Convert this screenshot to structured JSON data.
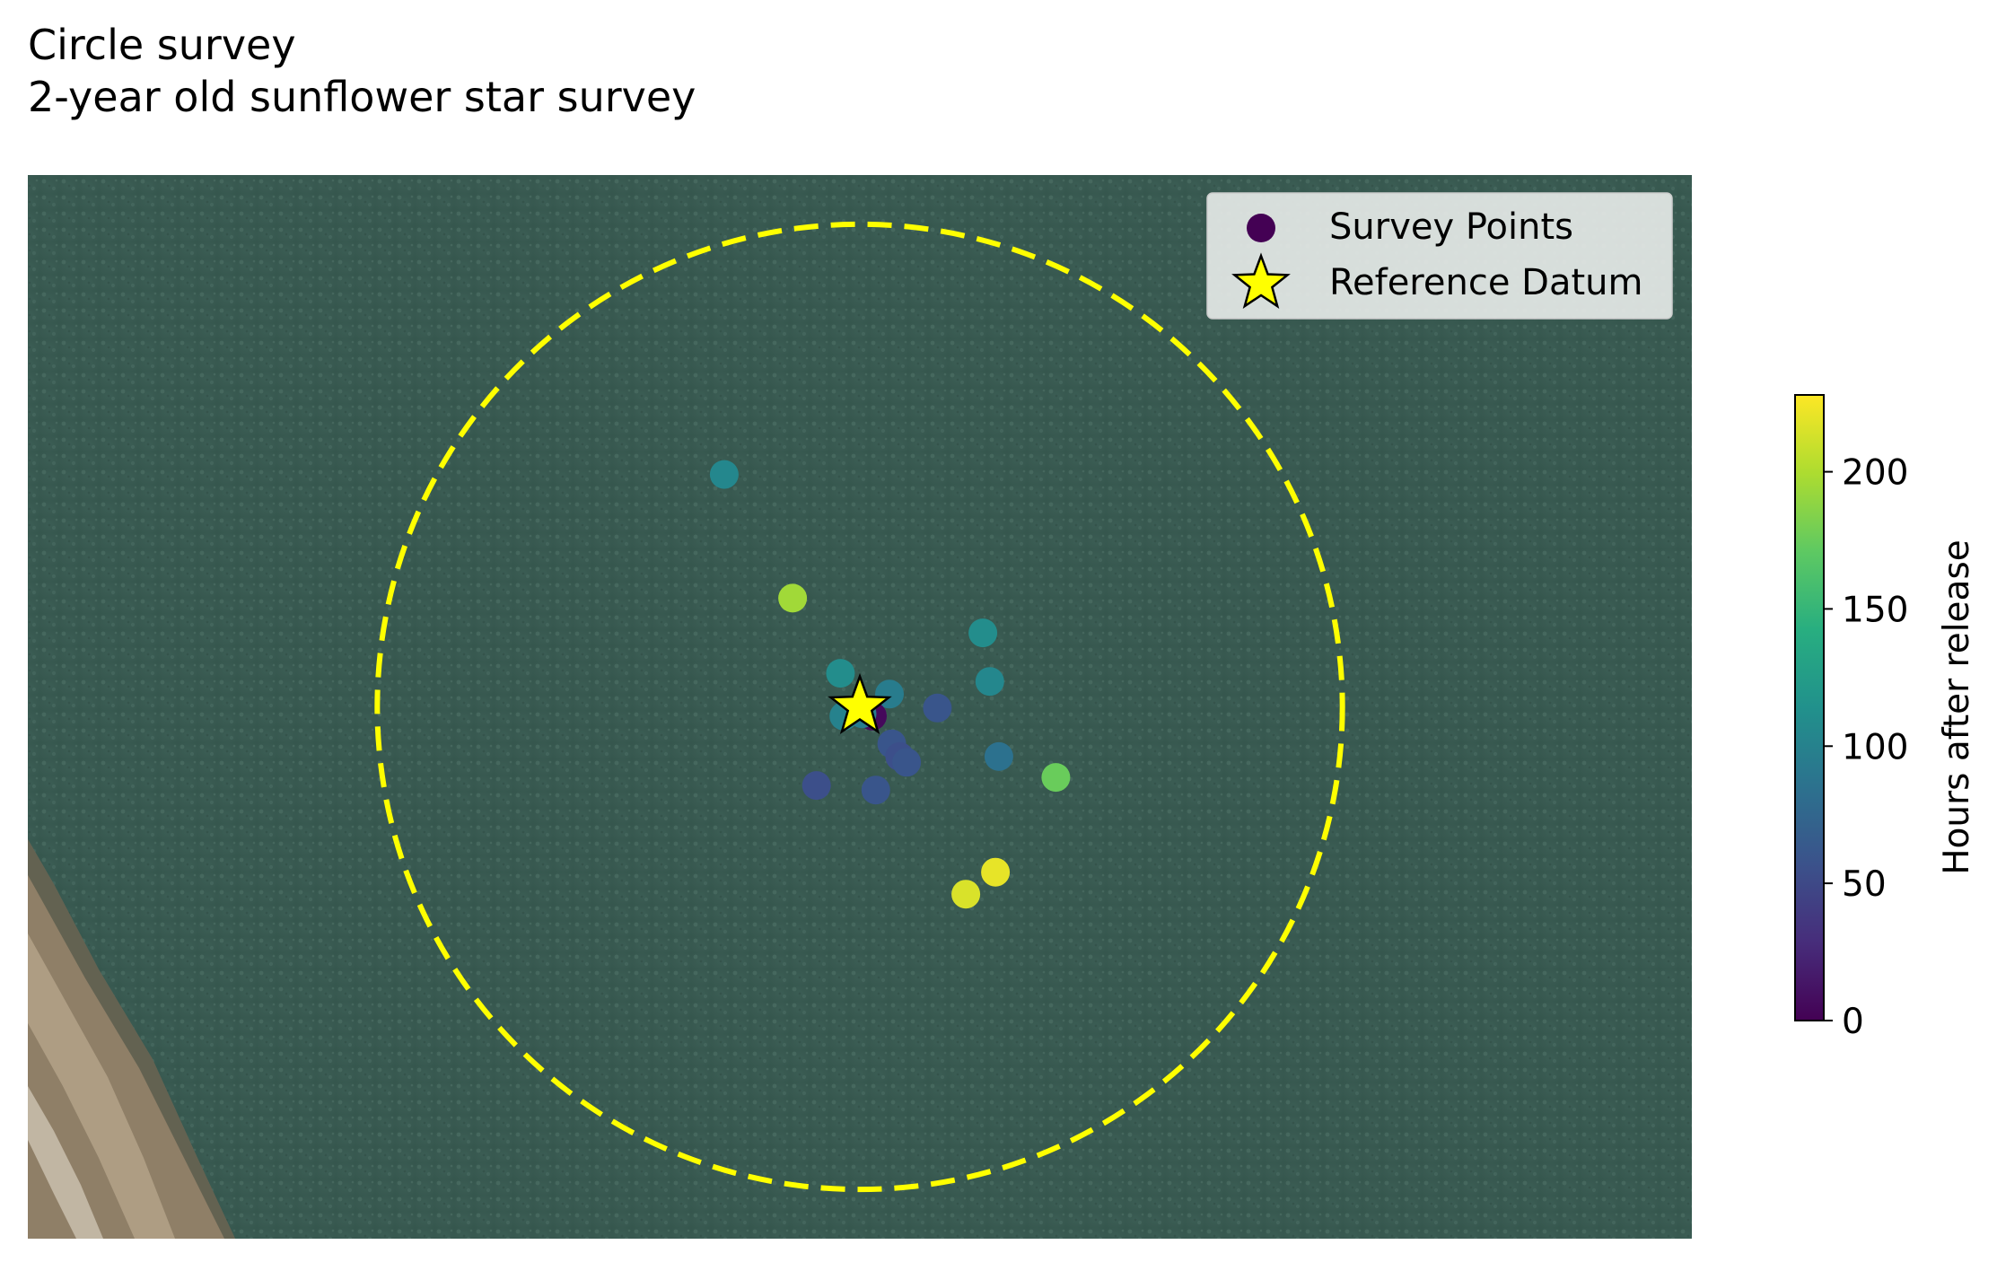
{
  "chart_data": {
    "type": "scatter",
    "title": "Circle survey",
    "subtitle": "2-year old sunflower star survey",
    "background": "aerial imagery (seawater with a shoreline/jetty in lower-left corner)",
    "grid": false,
    "legend_placement": "top-right",
    "legend": [
      {
        "label": "Survey Points",
        "marker": "circle",
        "color": "#440154"
      },
      {
        "label": "Reference Datum",
        "marker": "star",
        "color": "#ffff00"
      }
    ],
    "colorbar": {
      "label": "Hours after release",
      "colormap": "viridis",
      "range": [
        0,
        228
      ],
      "ticks": [
        0,
        50,
        100,
        150,
        200
      ]
    },
    "circle": {
      "style": "dashed",
      "color": "#ffff00",
      "relative_radius": 0.29
    },
    "x_extent": [
      -0.73,
      0.73
    ],
    "y_extent": [
      -0.46,
      0.46
    ],
    "reference_datum": {
      "x": 0,
      "y": 0
    },
    "series": [
      {
        "name": "Survey Points",
        "color_by": "Hours after release",
        "points": [
          {
            "x": -0.119,
            "y": 0.201,
            "hours": 105
          },
          {
            "x": -0.059,
            "y": 0.094,
            "hours": 195
          },
          {
            "x": 0.108,
            "y": 0.064,
            "hours": 110
          },
          {
            "x": 0.114,
            "y": 0.022,
            "hours": 105
          },
          {
            "x": -0.017,
            "y": 0.029,
            "hours": 110
          },
          {
            "x": 0.026,
            "y": 0.011,
            "hours": 95
          },
          {
            "x": 0.011,
            "y": -0.008,
            "hours": 5
          },
          {
            "x": 0.068,
            "y": -0.001,
            "hours": 60
          },
          {
            "x": -0.014,
            "y": -0.008,
            "hours": 100
          },
          {
            "x": 0.002,
            "y": -0.006,
            "hours": 95
          },
          {
            "x": 0.028,
            "y": -0.032,
            "hours": 60
          },
          {
            "x": 0.035,
            "y": -0.043,
            "hours": 55
          },
          {
            "x": 0.041,
            "y": -0.048,
            "hours": 60
          },
          {
            "x": 0.122,
            "y": -0.043,
            "hours": 85
          },
          {
            "x": 0.172,
            "y": -0.061,
            "hours": 175
          },
          {
            "x": -0.038,
            "y": -0.068,
            "hours": 55
          },
          {
            "x": 0.014,
            "y": -0.072,
            "hours": 60
          },
          {
            "x": 0.119,
            "y": -0.143,
            "hours": 220
          },
          {
            "x": 0.093,
            "y": -0.162,
            "hours": 215
          }
        ]
      }
    ]
  }
}
